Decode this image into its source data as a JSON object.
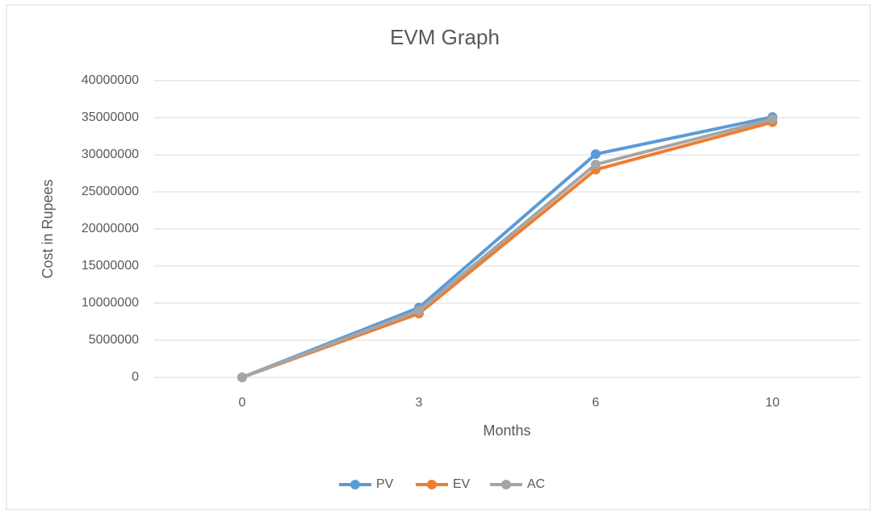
{
  "chart_data": {
    "type": "line",
    "title": "EVM Graph",
    "x_label": "Months",
    "y_label": "Cost in Rupees",
    "categories": [
      "0",
      "3",
      "6",
      "10"
    ],
    "series": [
      {
        "name": "PV",
        "color": "#5b9bd5",
        "values": [
          0,
          9400000,
          30100000,
          35100000
        ]
      },
      {
        "name": "EV",
        "color": "#ed7d31",
        "values": [
          0,
          8600000,
          28000000,
          34400000
        ]
      },
      {
        "name": "AC",
        "color": "#a5a5a5",
        "values": [
          0,
          9000000,
          28700000,
          34800000
        ]
      }
    ],
    "ylim": [
      0,
      40000000
    ],
    "yticks": [
      0,
      5000000,
      10000000,
      15000000,
      20000000,
      25000000,
      30000000,
      35000000,
      40000000
    ],
    "grid": true,
    "legend": "bottom"
  }
}
